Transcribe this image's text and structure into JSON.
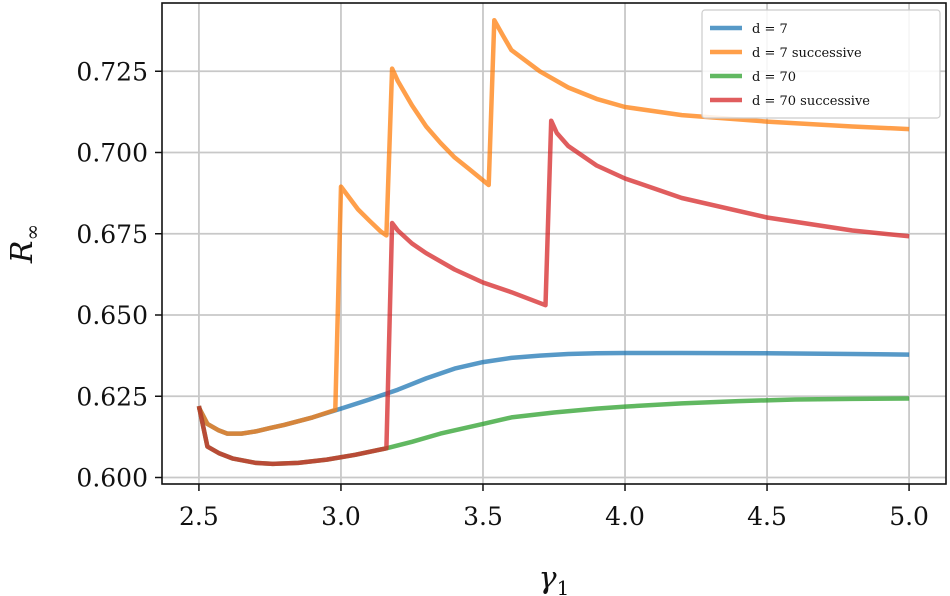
{
  "chart_data": {
    "type": "line",
    "xlabel": "γ1",
    "ylabel": "R∞",
    "xlim": [
      2.37,
      5.13
    ],
    "ylim": [
      0.598,
      0.746
    ],
    "xticks": [
      "2.5",
      "3.0",
      "3.5",
      "4.0",
      "4.5",
      "5.0"
    ],
    "yticks": [
      "0.600",
      "0.625",
      "0.650",
      "0.675",
      "0.700",
      "0.725"
    ],
    "grid": true,
    "legend_position": "top-right",
    "series": [
      {
        "name": "d = 7",
        "color": "#1f77b4",
        "x": [
          2.5,
          2.53,
          2.57,
          2.6,
          2.65,
          2.7,
          2.75,
          2.8,
          2.9,
          3.0,
          3.1,
          3.2,
          3.3,
          3.4,
          3.5,
          3.6,
          3.7,
          3.8,
          3.9,
          4.0,
          4.2,
          4.5,
          4.8,
          5.0
        ],
        "y": [
          0.6215,
          0.6165,
          0.6145,
          0.6135,
          0.6135,
          0.6142,
          0.6152,
          0.6162,
          0.6185,
          0.6212,
          0.624,
          0.627,
          0.6305,
          0.6335,
          0.6355,
          0.6368,
          0.6375,
          0.638,
          0.6382,
          0.6383,
          0.6383,
          0.6382,
          0.638,
          0.6378
        ]
      },
      {
        "name": "d = 7 successive",
        "color": "#ff7f0e",
        "x": [
          2.5,
          2.53,
          2.57,
          2.6,
          2.65,
          2.7,
          2.75,
          2.8,
          2.9,
          2.98,
          3.0,
          3.03,
          3.06,
          3.1,
          3.14,
          3.16,
          3.18,
          3.2,
          3.25,
          3.3,
          3.35,
          3.4,
          3.45,
          3.52,
          3.54,
          3.57,
          3.6,
          3.7,
          3.8,
          3.9,
          4.0,
          4.2,
          4.5,
          4.8,
          5.0
        ],
        "y": [
          0.6215,
          0.6165,
          0.6145,
          0.6135,
          0.6135,
          0.6142,
          0.6152,
          0.6162,
          0.6185,
          0.6208,
          0.6895,
          0.686,
          0.6825,
          0.679,
          0.6757,
          0.6745,
          0.7258,
          0.722,
          0.7145,
          0.708,
          0.703,
          0.6985,
          0.695,
          0.69,
          0.7407,
          0.736,
          0.7315,
          0.725,
          0.72,
          0.7165,
          0.714,
          0.7115,
          0.7095,
          0.708,
          0.7072
        ]
      },
      {
        "name": "d = 70",
        "color": "#2ca02c",
        "x": [
          2.5,
          2.53,
          2.57,
          2.62,
          2.7,
          2.76,
          2.85,
          2.95,
          3.05,
          3.16,
          3.25,
          3.35,
          3.5,
          3.6,
          3.75,
          3.9,
          4.0,
          4.2,
          4.4,
          4.6,
          4.8,
          5.0
        ],
        "y": [
          0.622,
          0.6095,
          0.6075,
          0.6058,
          0.6045,
          0.6042,
          0.6045,
          0.6055,
          0.607,
          0.609,
          0.611,
          0.6135,
          0.6165,
          0.6185,
          0.62,
          0.6212,
          0.6218,
          0.6228,
          0.6235,
          0.624,
          0.6242,
          0.6243
        ]
      },
      {
        "name": "d = 70 successive",
        "color": "#d62728",
        "x": [
          2.5,
          2.53,
          2.57,
          2.62,
          2.7,
          2.76,
          2.85,
          2.95,
          3.05,
          3.16,
          3.18,
          3.2,
          3.25,
          3.3,
          3.4,
          3.5,
          3.6,
          3.72,
          3.74,
          3.76,
          3.8,
          3.9,
          4.0,
          4.2,
          4.5,
          4.8,
          5.0
        ],
        "y": [
          0.622,
          0.6095,
          0.6075,
          0.6058,
          0.6045,
          0.6042,
          0.6045,
          0.6055,
          0.607,
          0.609,
          0.6783,
          0.676,
          0.672,
          0.669,
          0.664,
          0.66,
          0.657,
          0.653,
          0.7098,
          0.706,
          0.702,
          0.696,
          0.692,
          0.686,
          0.68,
          0.676,
          0.6742
        ]
      }
    ]
  }
}
